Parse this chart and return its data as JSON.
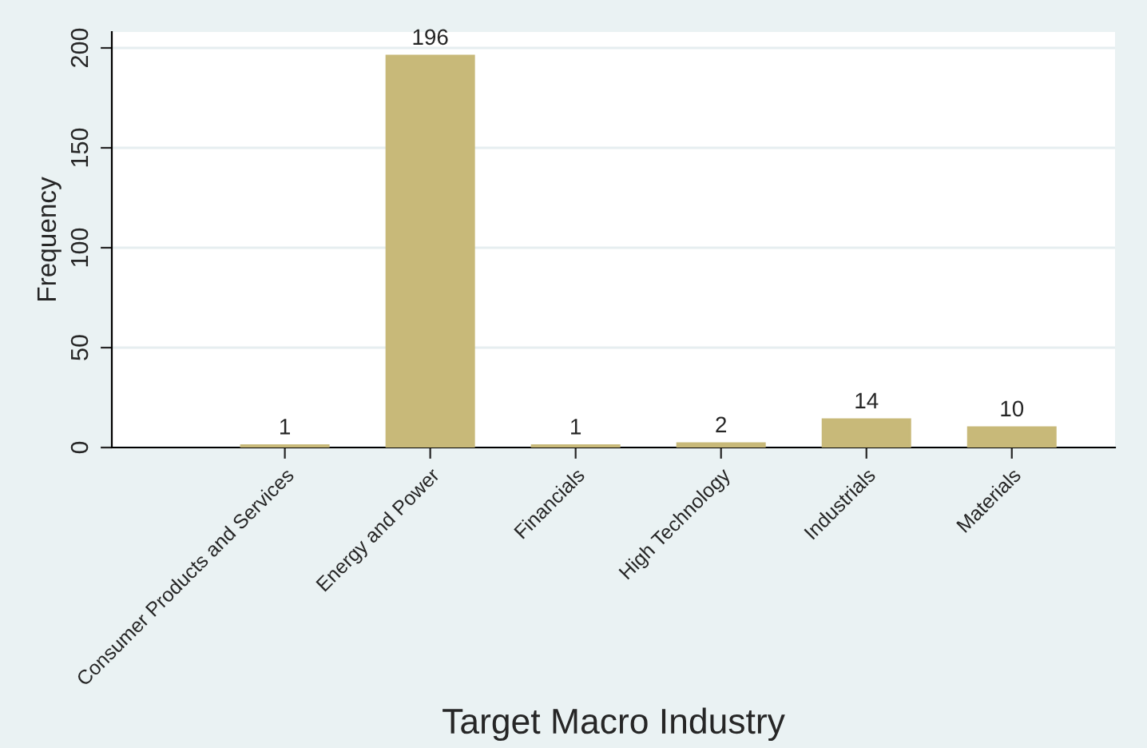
{
  "chart_data": {
    "type": "bar",
    "xlabel": "Target Macro Industry",
    "ylabel": "Frequency",
    "categories": [
      "Consumer Products and Services",
      "Energy and Power",
      "Financials",
      "High Technology",
      "Industrials",
      "Materials"
    ],
    "values": [
      1,
      196,
      1,
      2,
      14,
      10
    ],
    "color": "#c8b979",
    "ylim": [
      0,
      208
    ],
    "yticks": [
      0,
      50,
      100,
      150,
      200
    ],
    "grid": "y",
    "data_labels": true
  }
}
